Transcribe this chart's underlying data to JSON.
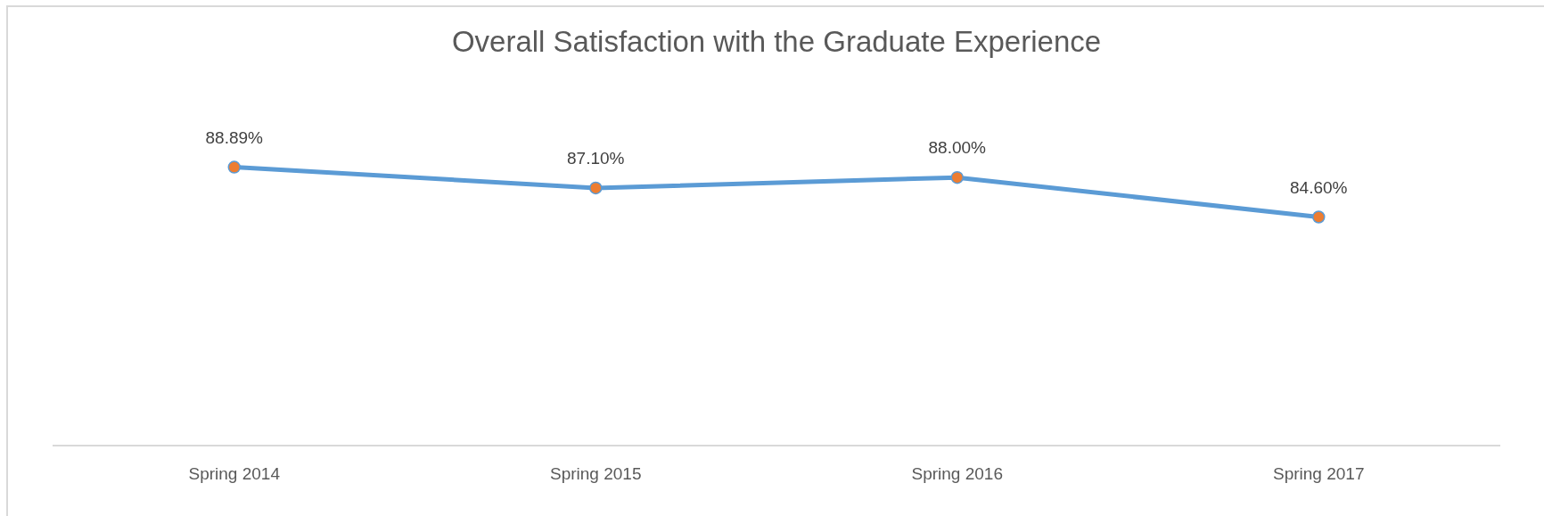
{
  "chart_data": {
    "type": "line",
    "title": "Overall Satisfaction with the Graduate Experience",
    "categories": [
      "Spring 2014",
      "Spring 2015",
      "Spring 2016",
      "Spring 2017"
    ],
    "series": [
      {
        "color": "#5b9bd5",
        "colors": [
          "#ed7d31",
          "#ed7d31",
          "#ed7d31",
          "#ed7d31"
        ],
        "values": [
          88.89,
          87.1,
          88.0,
          84.6
        ],
        "value_labels": [
          "88.89%",
          "87.10%",
          "88.00%",
          "84.60%"
        ]
      }
    ],
    "tick_labels": "x",
    "marker": "circle",
    "line_style": "solid"
  }
}
